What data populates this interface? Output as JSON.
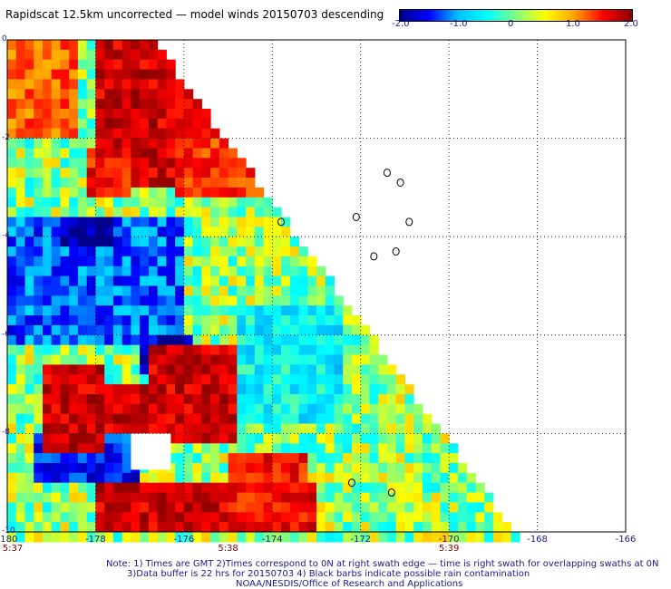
{
  "title": "Rapidscat 12.5km uncorrected — model winds 20150703 descending",
  "colorbar": {
    "stops": [
      "#00008b",
      "#0000ff",
      "#00bfff",
      "#00ffff",
      "#80ff80",
      "#ffff00",
      "#ffa500",
      "#ff0000",
      "#8b0000"
    ],
    "tick_labels": [
      "-2.0",
      "-1.0",
      "0",
      "1.0",
      "2.0"
    ]
  },
  "chart_data": {
    "type": "heatmap",
    "title": "Rapidscat 12.5km uncorrected — model winds 20150703 descending",
    "xlim": [
      -180,
      -166
    ],
    "ylim": [
      -10,
      0
    ],
    "x_tick_labels": [
      "-180",
      "-178",
      "-176",
      "-174",
      "-172",
      "-170",
      "-168",
      "-166"
    ],
    "y_tick_labels": [
      "0",
      "-2",
      "-4",
      "-6",
      "-8",
      "-10"
    ],
    "time_labels": [
      {
        "lon": -180,
        "text": "5:37"
      },
      {
        "lon": -175,
        "text": "5:38"
      },
      {
        "lon": -170,
        "text": "5:39"
      }
    ],
    "value_range": [
      -2.0,
      2.0
    ],
    "grid": true,
    "swath_edge": {
      "top_lon": -176.8,
      "bottom_lon": -168.6
    },
    "warm_regions": [
      {
        "lon": [
          -178,
          -175.5
        ],
        "lat": [
          -3,
          0
        ],
        "v": 2.0
      },
      {
        "lon": [
          -180,
          -178.5
        ],
        "lat": [
          -2,
          0
        ],
        "v": 1.5
      },
      {
        "lon": [
          -176.2,
          -174.3
        ],
        "lat": [
          -3.2,
          -1.5
        ],
        "v": 1.7
      },
      {
        "lon": [
          -178.3,
          -177.2
        ],
        "lat": [
          -3.2,
          -2.2
        ],
        "v": 1.8
      },
      {
        "lon": [
          -176.8,
          -174.8
        ],
        "lat": [
          -8.2,
          -6.2
        ],
        "v": 2.0
      },
      {
        "lon": [
          -179.3,
          -177.8
        ],
        "lat": [
          -8.5,
          -6.6
        ],
        "v": 2.0
      },
      {
        "lon": [
          -178.3,
          -176.3
        ],
        "lat": [
          -8.0,
          -7.0
        ],
        "v": 2.0
      },
      {
        "lon": [
          -178.0,
          -173.0
        ],
        "lat": [
          -10,
          -9.0
        ],
        "v": 2.0
      },
      {
        "lon": [
          -175.0,
          -173.3
        ],
        "lat": [
          -10,
          -8.5
        ],
        "v": 1.8
      }
    ],
    "cool_regions": [
      {
        "lon": [
          -180,
          -176
        ],
        "lat": [
          -6.2,
          -3.6
        ],
        "v": -1.2
      },
      {
        "lon": [
          -177.0,
          -175.8
        ],
        "lat": [
          -6.8,
          -6.0
        ],
        "v": -1.8
      },
      {
        "lon": [
          -178.8,
          -177.6
        ],
        "lat": [
          -4.3,
          -3.6
        ],
        "v": -2.0
      },
      {
        "lon": [
          -179.5,
          -177.0
        ],
        "lat": [
          -9.0,
          -8.0
        ],
        "v": -1.5
      },
      {
        "lon": [
          -174.8,
          -172.5
        ],
        "lat": [
          -7.8,
          -5.5
        ],
        "v": -0.6
      }
    ]
  },
  "footer": {
    "line1": "Note: 1) Times are GMT 2)Times correspond to 0N at right swath edge — time is right swath for overlapping swaths at 0N",
    "line2": "3)Data buffer is 22 hrs for 20150703 4) Black barbs indicate possible rain contamination",
    "line3": "NOAA/NESDIS/Office of Research and Applications"
  }
}
